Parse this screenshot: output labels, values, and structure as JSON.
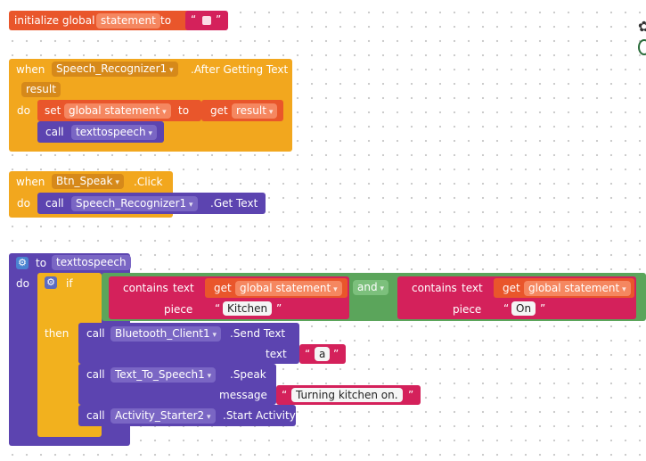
{
  "init_block": {
    "initialize_global": "initialize global",
    "var_name": "statement",
    "to": "to",
    "open_quote": "“",
    "close_quote": "”"
  },
  "event1": {
    "when": "when",
    "component": "Speech_Recognizer1",
    "event": ".After Getting Text",
    "param": "result",
    "do": "do",
    "set": "set",
    "set_var": "global statement",
    "to": "to",
    "get": "get",
    "get_var": "result",
    "call": "call",
    "proc": "texttospeech"
  },
  "event2": {
    "when": "when",
    "component": "Btn_Speak",
    "event": ".Click",
    "do": "do",
    "call": "call",
    "call_component": "Speech_Recognizer1",
    "method": ".Get Text"
  },
  "proc_def": {
    "to": "to",
    "name": "texttospeech",
    "do": "do",
    "if": "if",
    "then": "then",
    "contains1": "contains",
    "text1": "text",
    "get1": "get",
    "var1": "global statement",
    "piece1": "piece",
    "piece1_value": "Kitchen",
    "and": "and",
    "contains2": "contains",
    "text2": "text",
    "get2": "get",
    "var2": "global statement",
    "piece2": "piece",
    "piece2_value": "On",
    "call1": "call",
    "bt_component": "Bluetooth_Client1",
    "bt_method": ".Send Text",
    "bt_arg_label": "text",
    "bt_arg_value": "a",
    "call2": "call",
    "tts_component": "Text_To_Speech1",
    "tts_method": ".Speak",
    "tts_arg_label": "message",
    "tts_arg_value": "Turning kitchen on.",
    "call3": "call",
    "act_component": "Activity_Starter2",
    "act_method": ".Start Activity",
    "quote_open": "“",
    "quote_close": "”"
  }
}
